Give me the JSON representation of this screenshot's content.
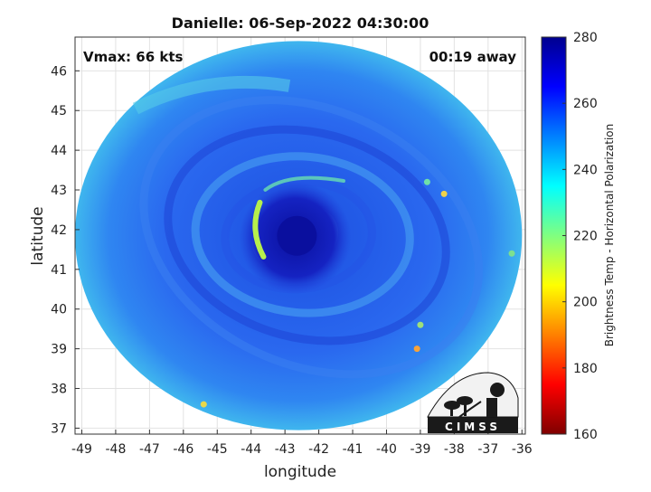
{
  "chart_data": {
    "type": "heatmap",
    "title": "Danielle: 06-Sep-2022 04:30:00",
    "xlabel": "longitude",
    "ylabel": "latitude",
    "xlim": [
      -49.2,
      -35.9
    ],
    "ylim": [
      36.85,
      46.85
    ],
    "xticks": [
      -49,
      -48,
      -47,
      -46,
      -45,
      -44,
      -43,
      -42,
      -41,
      -40,
      -39,
      -38,
      -37,
      -36
    ],
    "yticks": [
      37,
      38,
      39,
      40,
      41,
      42,
      43,
      44,
      45,
      46
    ],
    "grid": true,
    "annotations": {
      "vmax": "Vmax: 66 kts",
      "away": "00:19 away"
    },
    "colorbar": {
      "label": "Brightness Temp - Horizontal Polarization",
      "min": 160,
      "max": 280,
      "ticks": [
        160,
        180,
        200,
        220,
        240,
        260,
        280
      ],
      "colors": [
        "#7f0000",
        "#ff0000",
        "#ff8000",
        "#ffff00",
        "#80ff80",
        "#00ffff",
        "#0080ff",
        "#0000ff",
        "#00008f"
      ]
    },
    "swath": {
      "center": [
        -42.6,
        41.85
      ],
      "radius_lon": 6.6,
      "radius_lat": 4.9
    },
    "storm_center": [
      -42.7,
      41.8
    ],
    "eyewall_band": {
      "center": [
        -43.9,
        42.0
      ],
      "value": 215
    },
    "logo": {
      "text": "CIMSS"
    }
  }
}
